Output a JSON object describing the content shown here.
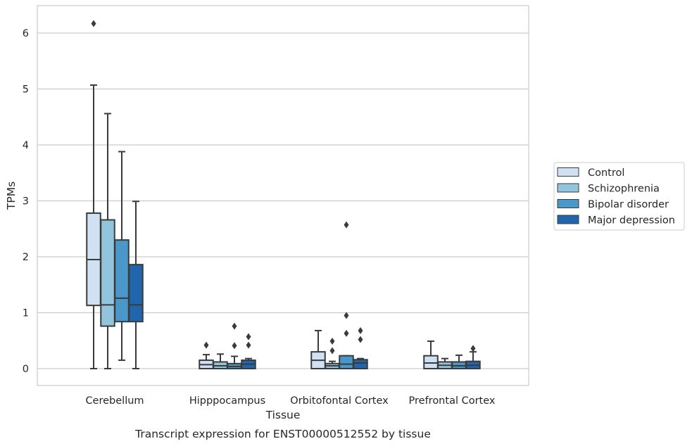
{
  "caption": "Transcript expression for ENST00000512552 by tissue",
  "chart_data": {
    "type": "box",
    "title": "",
    "xlabel": "Tissue",
    "ylabel": "TPMs",
    "ylim": [
      -0.3,
      6.5
    ],
    "yticks": [
      0,
      1,
      2,
      3,
      4,
      5,
      6
    ],
    "grid": "horizontal",
    "legend_position": "right",
    "categories": [
      "Cerebellum",
      "Hipppocampus",
      "Orbitofontal Cortex",
      "Prefrontal Cortex"
    ],
    "series": [
      {
        "name": "Control",
        "color": "#cfe1f2",
        "boxes": [
          {
            "whislo": 0.0,
            "q1": 1.13,
            "med": 1.95,
            "q3": 2.78,
            "whishi": 5.07,
            "fliers": [
              6.17
            ]
          },
          {
            "whislo": 0.0,
            "q1": 0.0,
            "med": 0.07,
            "q3": 0.15,
            "whishi": 0.25,
            "fliers": [
              0.42
            ]
          },
          {
            "whislo": 0.0,
            "q1": 0.0,
            "med": 0.15,
            "q3": 0.3,
            "whishi": 0.68,
            "fliers": []
          },
          {
            "whislo": 0.0,
            "q1": 0.0,
            "med": 0.1,
            "q3": 0.23,
            "whishi": 0.49,
            "fliers": []
          }
        ]
      },
      {
        "name": "Schizophrenia",
        "color": "#93c4de",
        "boxes": [
          {
            "whislo": 0.0,
            "q1": 0.76,
            "med": 1.14,
            "q3": 2.66,
            "whishi": 4.56,
            "fliers": []
          },
          {
            "whislo": 0.0,
            "q1": 0.0,
            "med": 0.05,
            "q3": 0.12,
            "whishi": 0.26,
            "fliers": []
          },
          {
            "whislo": 0.0,
            "q1": 0.0,
            "med": 0.05,
            "q3": 0.09,
            "whishi": 0.13,
            "fliers": [
              0.32,
              0.49
            ]
          },
          {
            "whislo": 0.0,
            "q1": 0.0,
            "med": 0.06,
            "q3": 0.12,
            "whishi": 0.18,
            "fliers": []
          }
        ]
      },
      {
        "name": "Bipolar disorder",
        "color": "#4a98c9",
        "boxes": [
          {
            "whislo": 0.15,
            "q1": 0.84,
            "med": 1.26,
            "q3": 2.3,
            "whishi": 3.88,
            "fliers": []
          },
          {
            "whislo": 0.0,
            "q1": 0.0,
            "med": 0.04,
            "q3": 0.09,
            "whishi": 0.22,
            "fliers": [
              0.41,
              0.76
            ]
          },
          {
            "whislo": 0.0,
            "q1": 0.0,
            "med": 0.08,
            "q3": 0.23,
            "whishi": 0.23,
            "fliers": [
              0.63,
              0.95,
              2.57
            ]
          },
          {
            "whislo": 0.0,
            "q1": 0.0,
            "med": 0.05,
            "q3": 0.12,
            "whishi": 0.24,
            "fliers": []
          }
        ]
      },
      {
        "name": "Major depression",
        "color": "#2166ac",
        "boxes": [
          {
            "whislo": 0.0,
            "q1": 0.84,
            "med": 1.14,
            "q3": 1.86,
            "whishi": 2.99,
            "fliers": []
          },
          {
            "whislo": 0.0,
            "q1": 0.0,
            "med": 0.08,
            "q3": 0.15,
            "whishi": 0.18,
            "fliers": [
              0.42,
              0.57
            ]
          },
          {
            "whislo": 0.0,
            "q1": 0.0,
            "med": 0.1,
            "q3": 0.16,
            "whishi": 0.18,
            "fliers": [
              0.52,
              0.68
            ]
          },
          {
            "whislo": 0.0,
            "q1": 0.0,
            "med": 0.06,
            "q3": 0.13,
            "whishi": 0.3,
            "fliers": [
              0.36
            ]
          }
        ]
      }
    ]
  }
}
